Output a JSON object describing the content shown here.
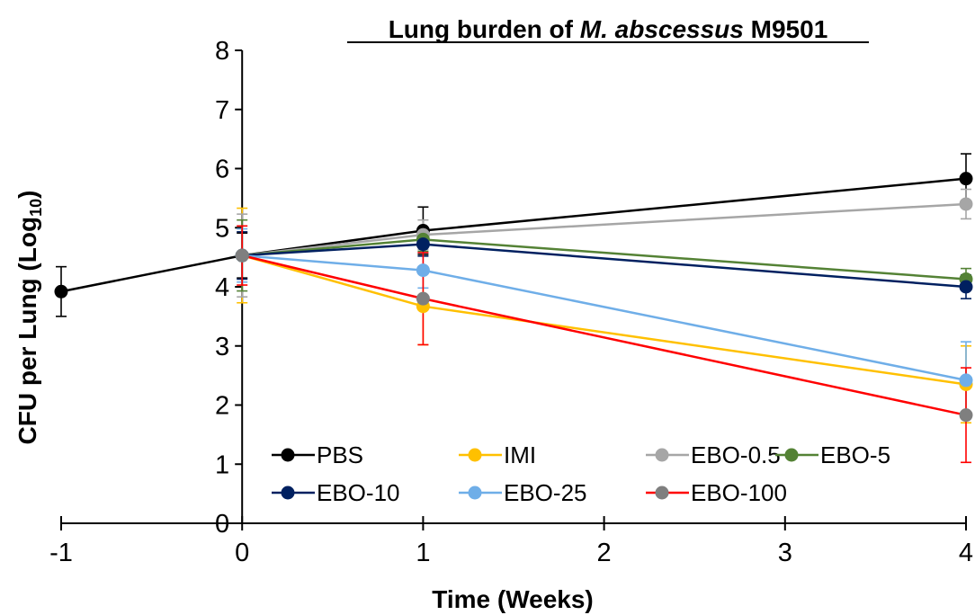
{
  "chart_data": {
    "type": "line",
    "title_parts": [
      "Lung burden of ",
      "M. abscessus",
      " M9501"
    ],
    "xlabel": "Time (Weeks)",
    "ylabel_main": "CFU per Lung (Log",
    "ylabel_sub": "10",
    "ylabel_end": ")",
    "xlim": [
      -1,
      4
    ],
    "ylim": [
      0,
      8
    ],
    "xticks": [
      "-1",
      "0",
      "1",
      "2",
      "3",
      "4"
    ],
    "yticks": [
      "0",
      "1",
      "2",
      "3",
      "4",
      "5",
      "6",
      "7",
      "8"
    ],
    "grid": false,
    "legend_position": "bottom-left inside",
    "series": [
      {
        "name": "PBS",
        "color": "#000000",
        "x": [
          -1,
          0,
          1,
          4
        ],
        "y": [
          3.92,
          4.53,
          4.95,
          5.83
        ],
        "err": [
          0.42,
          0.38,
          0.4,
          0.42
        ]
      },
      {
        "name": "IMI",
        "color": "#FFC000",
        "x": [
          0,
          1,
          4
        ],
        "y": [
          4.53,
          3.67,
          2.35
        ],
        "err": [
          0.8,
          0.65,
          0.65
        ]
      },
      {
        "name": "EBO-0.5",
        "color": "#A6A6A6",
        "x": [
          0,
          1,
          4
        ],
        "y": [
          4.53,
          4.88,
          5.4
        ],
        "err": [
          0.7,
          0.25,
          0.25
        ]
      },
      {
        "name": "EBO-5",
        "color": "#548235",
        "x": [
          0,
          1,
          4
        ],
        "y": [
          4.53,
          4.8,
          4.13
        ],
        "err": [
          0.6,
          0.2,
          0.18
        ]
      },
      {
        "name": "EBO-10",
        "color": "#002060",
        "x": [
          0,
          1,
          4
        ],
        "y": [
          4.53,
          4.72,
          4.0
        ],
        "err": [
          0.4,
          0.2,
          0.2
        ]
      },
      {
        "name": "EBO-25",
        "color": "#6FAEE8",
        "x": [
          0,
          1,
          4
        ],
        "y": [
          4.53,
          4.28,
          2.42
        ],
        "err": [
          0.45,
          0.3,
          0.65
        ]
      },
      {
        "name": "EBO-100",
        "color": "#FF0000",
        "x": [
          0,
          1,
          4
        ],
        "y": [
          4.53,
          3.8,
          1.83
        ],
        "err": [
          0.5,
          0.78,
          0.8
        ]
      }
    ],
    "marker_colors": {
      "EBO-100": "#7F7F7F"
    }
  }
}
